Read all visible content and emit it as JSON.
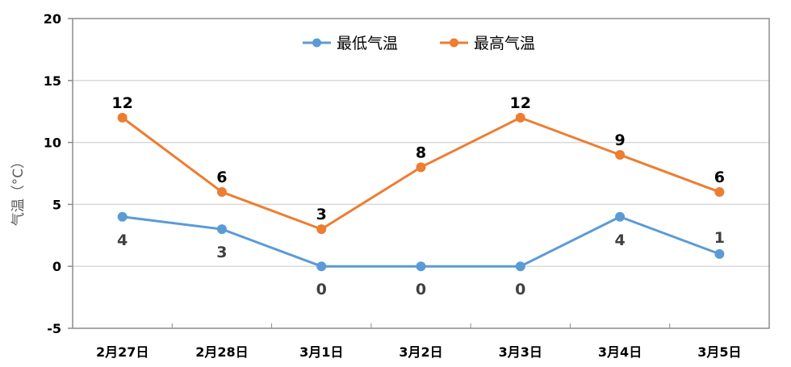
{
  "chart_data": {
    "type": "line",
    "title": "",
    "xlabel": "",
    "ylabel": "气温（°C）",
    "ylim": [
      -5,
      20
    ],
    "yticks": [
      -5,
      0,
      5,
      10,
      15,
      20
    ],
    "grid": true,
    "legend_position": "top-center",
    "categories": [
      "2月27日",
      "2月28日",
      "3月1日",
      "3月2日",
      "3月3日",
      "3月4日",
      "3月5日"
    ],
    "series": [
      {
        "name": "最低气温",
        "color": "#5B9BD5",
        "values": [
          4,
          3,
          0,
          0,
          0,
          4,
          1
        ]
      },
      {
        "name": "最高气温",
        "color": "#ED7D31",
        "values": [
          12,
          6,
          3,
          8,
          12,
          9,
          6
        ]
      }
    ]
  },
  "legend": {
    "items": [
      {
        "label": "最低气温",
        "color": "#5B9BD5"
      },
      {
        "label": "最高气温",
        "color": "#ED7D31"
      }
    ]
  }
}
